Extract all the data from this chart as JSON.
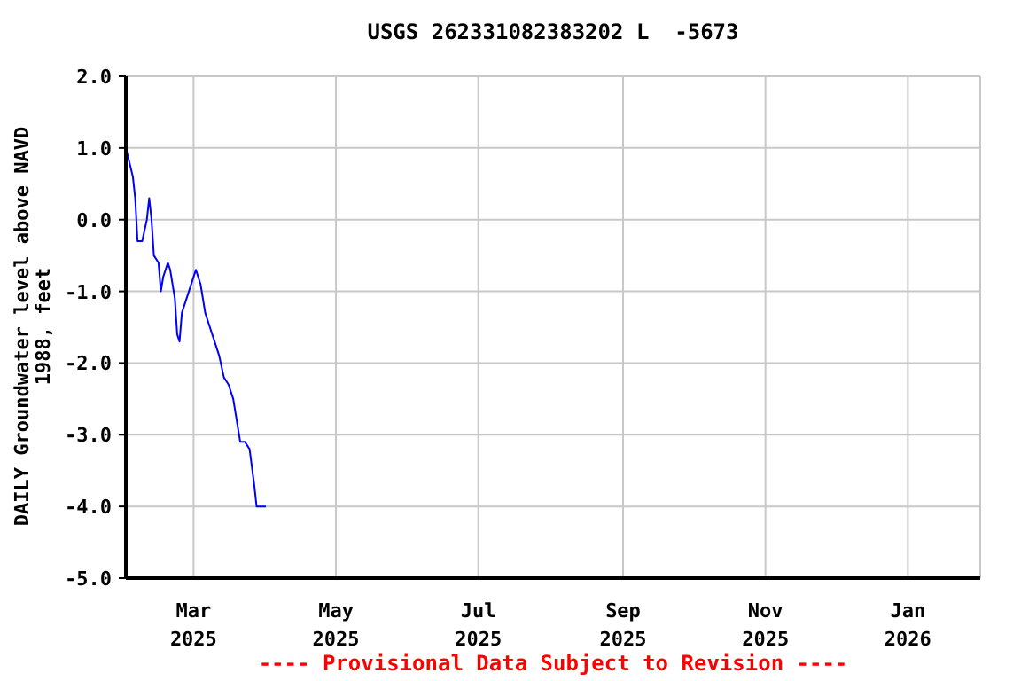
{
  "chart_data": {
    "type": "line",
    "title": "USGS 262331082383202 L  -5673",
    "ylabel": "DAILY Groundwater level above NAVD 1988, feet",
    "annotations": [
      "---- Provisional Data Subject to Revision ----"
    ],
    "x": [
      "2025-01-31",
      "2025-02-03",
      "2025-02-04",
      "2025-02-05",
      "2025-02-07",
      "2025-02-09",
      "2025-02-10",
      "2025-02-11",
      "2025-02-12",
      "2025-02-14",
      "2025-02-15",
      "2025-02-16",
      "2025-02-18",
      "2025-02-19",
      "2025-02-21",
      "2025-02-22",
      "2025-02-23",
      "2025-02-24",
      "2025-02-27",
      "2025-03-01",
      "2025-03-02",
      "2025-03-04",
      "2025-03-06",
      "2025-03-08",
      "2025-03-10",
      "2025-03-12",
      "2025-03-14",
      "2025-03-16",
      "2025-03-18",
      "2025-03-21",
      "2025-03-23",
      "2025-03-25",
      "2025-03-27",
      "2025-03-28",
      "2025-03-29",
      "2025-03-31",
      "2025-04-01"
    ],
    "series": [
      {
        "color": "#0000ff",
        "values": [
          1.0,
          0.6,
          0.3,
          -0.3,
          -0.3,
          0.0,
          0.3,
          0.0,
          -0.5,
          -0.6,
          -1.0,
          -0.8,
          -0.6,
          -0.7,
          -1.1,
          -1.6,
          -1.7,
          -1.3,
          -1.0,
          -0.8,
          -0.7,
          -0.9,
          -1.3,
          -1.5,
          -1.7,
          -1.9,
          -2.2,
          -2.3,
          -2.5,
          -3.1,
          -3.1,
          -3.2,
          -3.7,
          -4.0,
          -4.0,
          -4.0,
          -4.0
        ]
      }
    ],
    "xlim": [
      "2025-01-31",
      "2026-02-01"
    ],
    "xticks": [
      {
        "value": "2025-03-01",
        "label": "Mar 2025"
      },
      {
        "value": "2025-05-01",
        "label": "May 2025"
      },
      {
        "value": "2025-07-01",
        "label": "Jul 2025"
      },
      {
        "value": "2025-09-01",
        "label": "Sep 2025"
      },
      {
        "value": "2025-11-01",
        "label": "Nov 2025"
      },
      {
        "value": "2026-01-01",
        "label": "Jan 2026"
      }
    ],
    "ylim": [
      -5,
      2
    ],
    "yticks": [
      {
        "value": 2,
        "label": "2.0"
      },
      {
        "value": 1,
        "label": "1.0"
      },
      {
        "value": 0,
        "label": "0.0"
      },
      {
        "value": -1,
        "label": "-1.0"
      },
      {
        "value": -2,
        "label": "-2.0"
      },
      {
        "value": -3,
        "label": "-3.0"
      },
      {
        "value": -4,
        "label": "-4.0"
      },
      {
        "value": -5,
        "label": "-5.0"
      }
    ],
    "grid": true,
    "legend": false,
    "marker": "none",
    "line_style": "solid"
  }
}
